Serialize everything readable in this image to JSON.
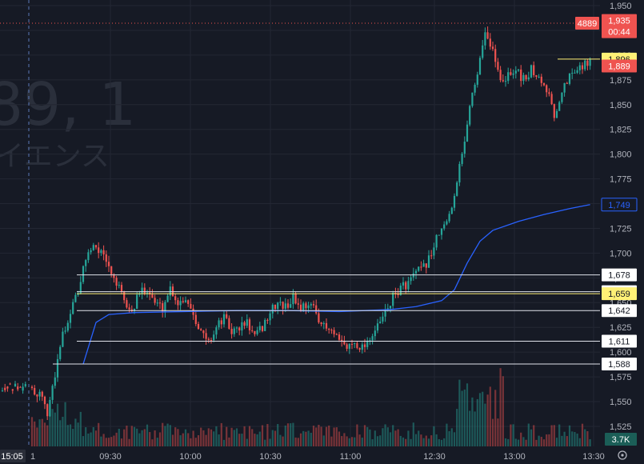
{
  "watermark": {
    "symbol_fragment": "89, 1",
    "name_fragment": "イエンス"
  },
  "colors": {
    "background": "#161a25",
    "grid": "#232733",
    "up": "#26a69a",
    "down": "#ef5350",
    "ma": "#2962ff",
    "level_line": "#e0e3eb",
    "highlight": "#fff176"
  },
  "chart_data": {
    "type": "candlestick",
    "y_ticks": [
      "1,525",
      "1,550",
      "1,575",
      "1,600",
      "1,625",
      "1,650",
      "1,675",
      "1,700",
      "1,725",
      "1,750",
      "1,775",
      "1,800",
      "1,825",
      "1,850",
      "1,875",
      "1,900",
      "1,925",
      "1,950"
    ],
    "y_range": [
      1514,
      1958
    ],
    "x_ticks": [
      "09:30",
      "10:00",
      "10:30",
      "11:00",
      "12:30",
      "13:00",
      "13:30"
    ],
    "session_start_label": "15:05",
    "left_edge_label": "1",
    "levels": [
      {
        "value": 1678,
        "label": "1,678",
        "style": "white"
      },
      {
        "value": 1661,
        "label": "1,661",
        "style": "white"
      },
      {
        "value": 1659,
        "label": "1,659",
        "style": "yellow"
      },
      {
        "value": 1642,
        "label": "1,642",
        "style": "white"
      },
      {
        "value": 1611,
        "label": "1,611",
        "style": "white"
      },
      {
        "value": 1588,
        "label": "1,588",
        "style": "white"
      },
      {
        "value": 1896,
        "label": "1,896",
        "style": "yellow"
      }
    ],
    "price_badges": [
      {
        "value": 1935,
        "label": "1,935",
        "sublabel": "00:44",
        "style": "red"
      },
      {
        "value": 1889,
        "label": "1,889",
        "style": "red"
      },
      {
        "value": 1749,
        "label": "1,749",
        "style": "blue"
      }
    ],
    "symbol_code": "4889",
    "volume_label": "3.7K",
    "price_path": [
      [
        0,
        1565
      ],
      [
        3,
        1555
      ],
      [
        6,
        1540
      ],
      [
        9,
        1575
      ],
      [
        12,
        1620
      ],
      [
        15,
        1640
      ],
      [
        18,
        1662
      ],
      [
        21,
        1695
      ],
      [
        24,
        1710
      ],
      [
        27,
        1700
      ],
      [
        30,
        1685
      ],
      [
        33,
        1670
      ],
      [
        36,
        1650
      ],
      [
        39,
        1640
      ],
      [
        42,
        1660
      ],
      [
        45,
        1665
      ],
      [
        48,
        1650
      ],
      [
        51,
        1645
      ],
      [
        54,
        1665
      ],
      [
        57,
        1650
      ],
      [
        60,
        1655
      ],
      [
        63,
        1640
      ],
      [
        66,
        1620
      ],
      [
        69,
        1610
      ],
      [
        72,
        1625
      ],
      [
        75,
        1635
      ],
      [
        78,
        1620
      ],
      [
        81,
        1625
      ],
      [
        84,
        1630
      ],
      [
        87,
        1615
      ],
      [
        90,
        1625
      ],
      [
        93,
        1640
      ],
      [
        96,
        1650
      ],
      [
        99,
        1645
      ],
      [
        102,
        1655
      ],
      [
        105,
        1645
      ],
      [
        108,
        1650
      ],
      [
        111,
        1640
      ],
      [
        114,
        1625
      ],
      [
        117,
        1620
      ],
      [
        120,
        1610
      ],
      [
        123,
        1605
      ],
      [
        126,
        1610
      ],
      [
        129,
        1605
      ],
      [
        132,
        1615
      ],
      [
        135,
        1625
      ],
      [
        138,
        1640
      ],
      [
        141,
        1655
      ],
      [
        144,
        1665
      ],
      [
        147,
        1670
      ],
      [
        150,
        1680
      ],
      [
        153,
        1685
      ],
      [
        156,
        1700
      ],
      [
        159,
        1720
      ],
      [
        162,
        1730
      ],
      [
        165,
        1760
      ],
      [
        168,
        1800
      ],
      [
        171,
        1850
      ],
      [
        174,
        1880
      ],
      [
        177,
        1920
      ],
      [
        180,
        1905
      ],
      [
        183,
        1875
      ],
      [
        186,
        1880
      ],
      [
        189,
        1885
      ],
      [
        192,
        1875
      ],
      [
        195,
        1885
      ],
      [
        198,
        1880
      ],
      [
        201,
        1865
      ],
      [
        204,
        1840
      ],
      [
        207,
        1865
      ],
      [
        210,
        1880
      ],
      [
        213,
        1885
      ],
      [
        216,
        1892
      ],
      [
        218,
        1896
      ]
    ],
    "ma_path": [
      [
        20,
        1588
      ],
      [
        25,
        1630
      ],
      [
        30,
        1638
      ],
      [
        40,
        1640
      ],
      [
        60,
        1641
      ],
      [
        80,
        1642
      ],
      [
        100,
        1642
      ],
      [
        120,
        1641
      ],
      [
        140,
        1643
      ],
      [
        150,
        1646
      ],
      [
        160,
        1652
      ],
      [
        165,
        1663
      ],
      [
        170,
        1690
      ],
      [
        175,
        1712
      ],
      [
        180,
        1723
      ],
      [
        190,
        1732
      ],
      [
        200,
        1739
      ],
      [
        210,
        1745
      ],
      [
        218,
        1749
      ]
    ]
  }
}
